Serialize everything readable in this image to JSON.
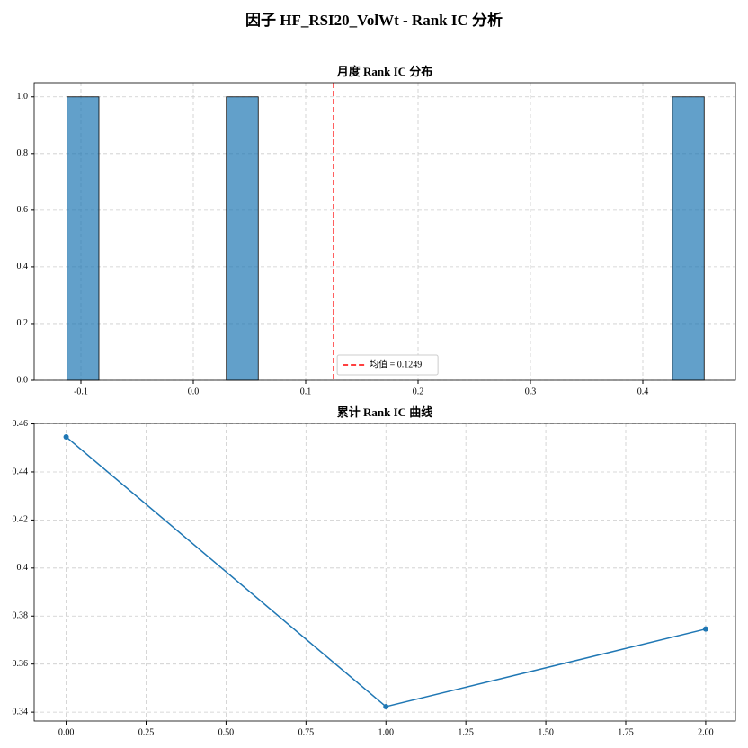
{
  "title": "因子 HF_RSI20_VolWt - Rank IC 分析",
  "chart_data": [
    {
      "type": "histogram",
      "title": "月度 Rank IC 分布",
      "bins": [
        -0.1123,
        -0.084,
        -0.0556,
        -0.0273,
        0.0011,
        0.0294,
        0.0578,
        0.0861,
        0.1145,
        0.1428,
        0.1712,
        0.1995,
        0.2278,
        0.2562,
        0.2845,
        0.3129,
        0.3412,
        0.3696,
        0.3979,
        0.4263,
        0.4546
      ],
      "values": [
        1,
        0,
        0,
        0,
        0,
        1,
        0,
        0,
        0,
        0,
        0,
        0,
        0,
        0,
        0,
        0,
        0,
        0,
        0,
        1
      ],
      "color": "#1f77b4",
      "mean_line": {
        "value": 0.1249,
        "label": "均值 = 0.1249",
        "color": "#ff0000"
      },
      "xlim": [
        -0.1416,
        0.4824
      ],
      "xticks": [
        -0.1,
        {
          "value": 0,
          "label": "0.0"
        },
        0.1,
        0.2,
        0.3,
        0.4
      ],
      "ylim": [
        0,
        1.05
      ],
      "yticks": [
        {
          "value": 0,
          "label": "0.0"
        },
        0.2,
        0.4,
        0.6,
        0.8,
        {
          "value": 1,
          "label": "1.0"
        }
      ],
      "grid": true
    },
    {
      "type": "line",
      "title": "累计 Rank IC 曲线",
      "x": [
        0,
        1,
        2
      ],
      "y": [
        0.4546,
        0.3423,
        0.3746
      ],
      "color": "#1f77b4",
      "xlim": [
        -0.1,
        2.093
      ],
      "xticks": [
        {
          "value": 0,
          "label": "0.00"
        },
        0.25,
        {
          "value": 0.5,
          "label": "0.50"
        },
        0.75,
        {
          "value": 1,
          "label": "1.00"
        },
        1.25,
        {
          "value": 1.5,
          "label": "1.50"
        },
        1.75,
        {
          "value": 2,
          "label": "2.00"
        }
      ],
      "ylim": [
        0.3363,
        0.4602
      ],
      "yticks": [
        0.34,
        0.36,
        0.38,
        0.4,
        0.42,
        0.44,
        0.46
      ],
      "grid": true
    }
  ]
}
